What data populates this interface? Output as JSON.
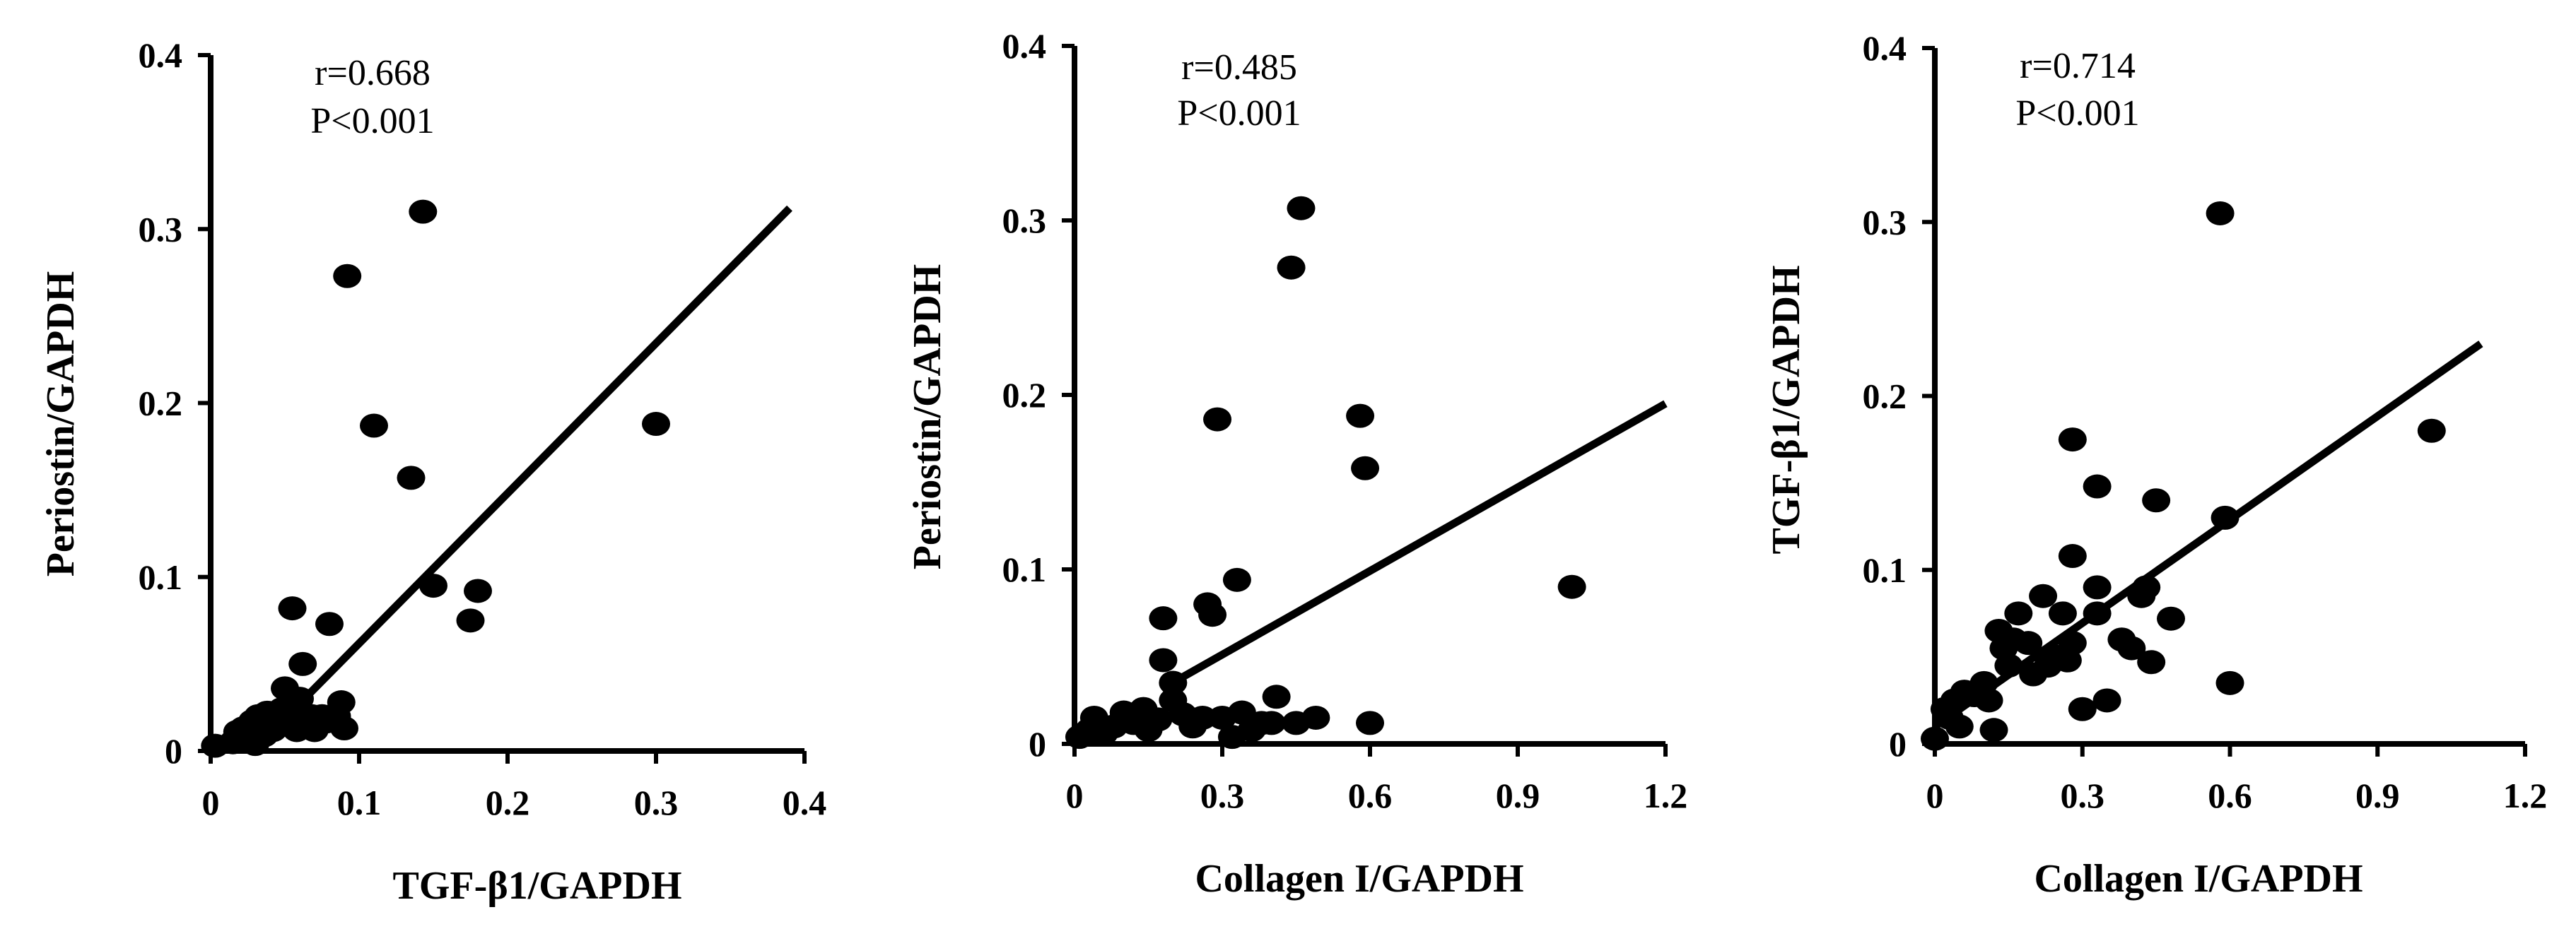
{
  "chart_data": [
    {
      "type": "scatter",
      "xlabel": "TGF-β1/GAPDH",
      "ylabel": "Periostin/GAPDH",
      "annotation": [
        "r=0.668",
        "P<0.001"
      ],
      "xlim": [
        0,
        0.4
      ],
      "ylim": [
        0,
        0.4
      ],
      "xticks": [
        0,
        0.1,
        0.2,
        0.3,
        0.4
      ],
      "xtick_labels": [
        "0",
        "0.1",
        "0.2",
        "0.3",
        "0.4"
      ],
      "yticks": [
        0,
        0.1,
        0.2,
        0.3,
        0.4
      ],
      "ytick_labels": [
        "0",
        "0.1",
        "0.2",
        "0.3",
        "0.4"
      ],
      "fit_line": [
        [
          0.055,
          0.023
        ],
        [
          0.39,
          0.312
        ]
      ],
      "points": [
        [
          0.003,
          0.003
        ],
        [
          0.015,
          0.005
        ],
        [
          0.018,
          0.011
        ],
        [
          0.022,
          0.013
        ],
        [
          0.025,
          0.008
        ],
        [
          0.028,
          0.017
        ],
        [
          0.03,
          0.004
        ],
        [
          0.032,
          0.02
        ],
        [
          0.034,
          0.014
        ],
        [
          0.036,
          0.009
        ],
        [
          0.038,
          0.022
        ],
        [
          0.04,
          0.016
        ],
        [
          0.042,
          0.012
        ],
        [
          0.045,
          0.019
        ],
        [
          0.048,
          0.024
        ],
        [
          0.05,
          0.036
        ],
        [
          0.052,
          0.015
        ],
        [
          0.055,
          0.018
        ],
        [
          0.058,
          0.012
        ],
        [
          0.06,
          0.03
        ],
        [
          0.062,
          0.05
        ],
        [
          0.065,
          0.015
        ],
        [
          0.068,
          0.02
        ],
        [
          0.07,
          0.012
        ],
        [
          0.075,
          0.02
        ],
        [
          0.078,
          0.017
        ],
        [
          0.08,
          0.073
        ],
        [
          0.085,
          0.02
        ],
        [
          0.088,
          0.028
        ],
        [
          0.09,
          0.013
        ],
        [
          0.092,
          0.273
        ],
        [
          0.055,
          0.082
        ],
        [
          0.11,
          0.187
        ],
        [
          0.135,
          0.157
        ],
        [
          0.143,
          0.31
        ],
        [
          0.15,
          0.095
        ],
        [
          0.175,
          0.075
        ],
        [
          0.18,
          0.092
        ],
        [
          0.3,
          0.188
        ]
      ]
    },
    {
      "type": "scatter",
      "xlabel": "Collagen I/GAPDH",
      "ylabel": "Periostin/GAPDH",
      "annotation": [
        "r=0.485",
        "P<0.001"
      ],
      "xlim": [
        0,
        1.2
      ],
      "ylim": [
        0,
        0.4
      ],
      "xticks": [
        0,
        0.3,
        0.6,
        0.9,
        1.2
      ],
      "xtick_labels": [
        "0",
        "0.3",
        "0.6",
        "0.9",
        "1.2"
      ],
      "yticks": [
        0,
        0.1,
        0.2,
        0.3,
        0.4
      ],
      "ytick_labels": [
        "0",
        "0.1",
        "0.2",
        "0.3",
        "0.4"
      ],
      "fit_line": [
        [
          0.18,
          0.032
        ],
        [
          1.2,
          0.195
        ]
      ],
      "points": [
        [
          0.01,
          0.004
        ],
        [
          0.03,
          0.008
        ],
        [
          0.04,
          0.015
        ],
        [
          0.06,
          0.006
        ],
        [
          0.08,
          0.01
        ],
        [
          0.1,
          0.018
        ],
        [
          0.12,
          0.012
        ],
        [
          0.14,
          0.02
        ],
        [
          0.15,
          0.008
        ],
        [
          0.17,
          0.014
        ],
        [
          0.18,
          0.072
        ],
        [
          0.18,
          0.048
        ],
        [
          0.2,
          0.025
        ],
        [
          0.2,
          0.035
        ],
        [
          0.22,
          0.017
        ],
        [
          0.24,
          0.01
        ],
        [
          0.26,
          0.015
        ],
        [
          0.27,
          0.08
        ],
        [
          0.28,
          0.074
        ],
        [
          0.29,
          0.186
        ],
        [
          0.3,
          0.015
        ],
        [
          0.32,
          0.004
        ],
        [
          0.33,
          0.094
        ],
        [
          0.34,
          0.018
        ],
        [
          0.36,
          0.008
        ],
        [
          0.38,
          0.012
        ],
        [
          0.4,
          0.012
        ],
        [
          0.41,
          0.027
        ],
        [
          0.44,
          0.273
        ],
        [
          0.45,
          0.012
        ],
        [
          0.46,
          0.307
        ],
        [
          0.49,
          0.015
        ],
        [
          0.58,
          0.188
        ],
        [
          0.59,
          0.158
        ],
        [
          0.6,
          0.012
        ],
        [
          1.01,
          0.09
        ]
      ]
    },
    {
      "type": "scatter",
      "xlabel": "Collagen I/GAPDH",
      "ylabel": "TGF-β1/GAPDH",
      "annotation": [
        "r=0.714",
        "P<0.001"
      ],
      "xlim": [
        0,
        1.2
      ],
      "ylim": [
        0,
        0.4
      ],
      "xticks": [
        0,
        0.3,
        0.6,
        0.9,
        1.2
      ],
      "xtick_labels": [
        "0",
        "0.3",
        "0.6",
        "0.9",
        "1.2"
      ],
      "yticks": [
        0,
        0.1,
        0.2,
        0.3,
        0.4
      ],
      "ytick_labels": [
        "0",
        "0.1",
        "0.2",
        "0.3",
        "0.4"
      ],
      "fit_line": [
        [
          0.0,
          0.01
        ],
        [
          1.11,
          0.23
        ]
      ],
      "points": [
        [
          0.0,
          0.003
        ],
        [
          0.02,
          0.02
        ],
        [
          0.03,
          0.015
        ],
        [
          0.04,
          0.025
        ],
        [
          0.05,
          0.01
        ],
        [
          0.06,
          0.03
        ],
        [
          0.08,
          0.028
        ],
        [
          0.1,
          0.035
        ],
        [
          0.11,
          0.025
        ],
        [
          0.12,
          0.008
        ],
        [
          0.13,
          0.065
        ],
        [
          0.14,
          0.055
        ],
        [
          0.15,
          0.045
        ],
        [
          0.16,
          0.06
        ],
        [
          0.17,
          0.075
        ],
        [
          0.19,
          0.058
        ],
        [
          0.2,
          0.04
        ],
        [
          0.22,
          0.085
        ],
        [
          0.23,
          0.045
        ],
        [
          0.25,
          0.05
        ],
        [
          0.26,
          0.075
        ],
        [
          0.27,
          0.048
        ],
        [
          0.28,
          0.058
        ],
        [
          0.28,
          0.108
        ],
        [
          0.28,
          0.175
        ],
        [
          0.3,
          0.02
        ],
        [
          0.33,
          0.09
        ],
        [
          0.33,
          0.075
        ],
        [
          0.33,
          0.148
        ],
        [
          0.35,
          0.025
        ],
        [
          0.38,
          0.06
        ],
        [
          0.4,
          0.055
        ],
        [
          0.42,
          0.085
        ],
        [
          0.43,
          0.09
        ],
        [
          0.44,
          0.047
        ],
        [
          0.45,
          0.14
        ],
        [
          0.48,
          0.072
        ],
        [
          0.58,
          0.305
        ],
        [
          0.59,
          0.13
        ],
        [
          0.6,
          0.035
        ],
        [
          1.01,
          0.18
        ]
      ]
    }
  ]
}
